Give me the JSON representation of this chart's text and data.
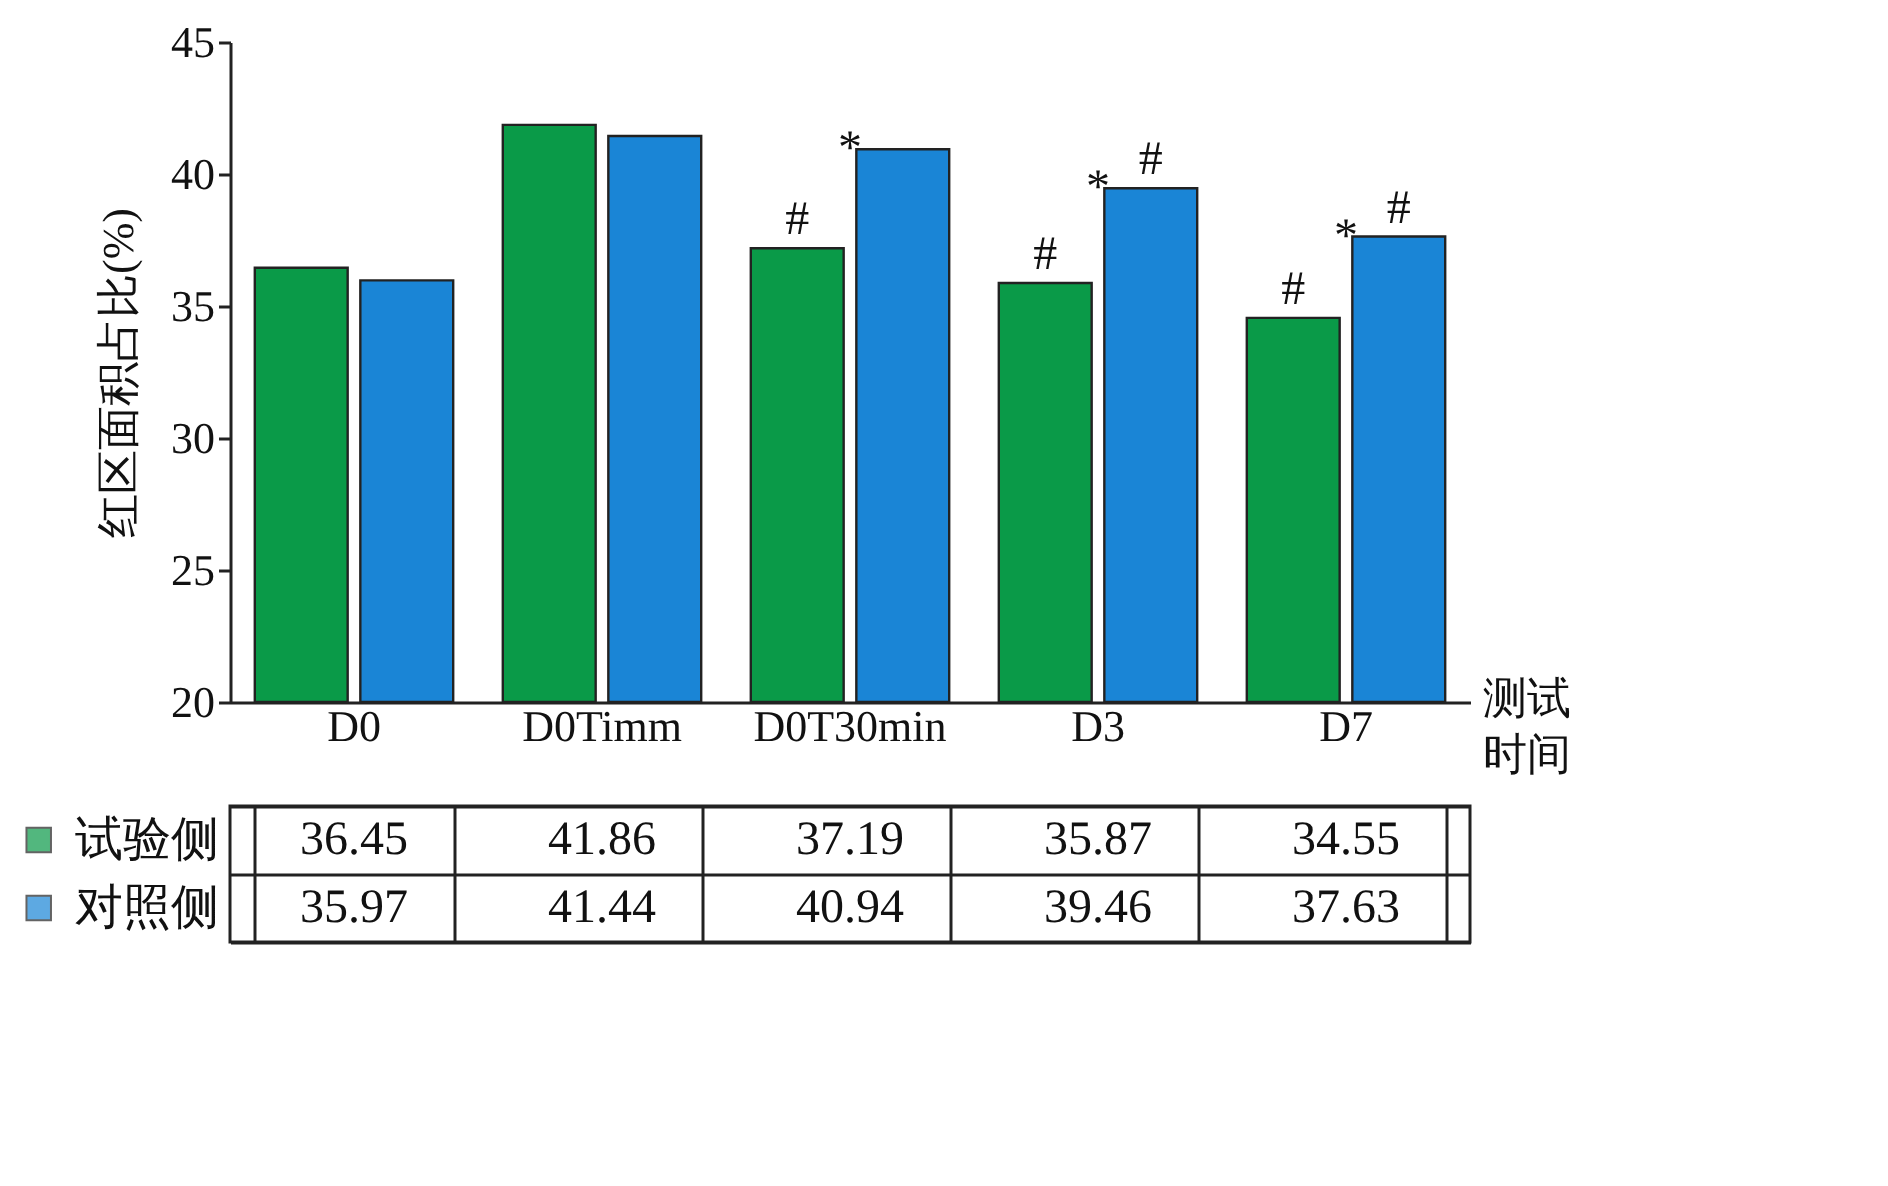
{
  "chart_data": {
    "type": "bar",
    "xlabel": "测试时间",
    "ylabel": "红区面积占比(%)",
    "categories": [
      "D0",
      "D0Timm",
      "D0T30min",
      "D3",
      "D7"
    ],
    "series": [
      {
        "name": "试验侧",
        "color": "#0a9a48",
        "values": [
          36.45,
          41.86,
          37.19,
          35.87,
          34.55
        ]
      },
      {
        "name": "对照侧",
        "color": "#1a85d6",
        "values": [
          35.97,
          41.44,
          40.94,
          39.46,
          37.63
        ]
      }
    ],
    "ylim": [
      20,
      45
    ],
    "yticks": [
      20,
      25,
      30,
      35,
      40,
      45
    ],
    "grid": false,
    "legend": "bottom",
    "data_labels": true,
    "annotations": [
      {
        "text": "#",
        "x": "D0T30min",
        "y": 37.19
      },
      {
        "text": "#",
        "x": "D3",
        "y": 35.87
      },
      {
        "text": "#",
        "x": "D3",
        "y": 39.46
      },
      {
        "text": "#",
        "x": "D7",
        "y": 34.55
      },
      {
        "text": "#",
        "x": "D7",
        "y": 37.63
      },
      {
        "text": "*",
        "x": "D0T30min",
        "y": 40.94
      },
      {
        "text": "*",
        "x": "D3",
        "y": 39.46
      },
      {
        "text": "*",
        "x": "D7",
        "y": 37.63
      }
    ]
  }
}
